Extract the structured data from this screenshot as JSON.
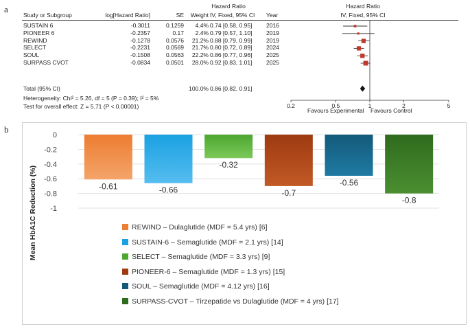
{
  "panel_labels": {
    "a": "a",
    "b": "b"
  },
  "forest": {
    "col_headers": {
      "study": "Study or Subgroup",
      "loghr": "log[Hazard Ratio]",
      "se": "SE",
      "weight": "Weight",
      "hr_top": "Hazard Ratio",
      "hr_sub": "IV, Fixed, 95% CI",
      "year": "Year",
      "plot_top": "Hazard Ratio",
      "plot_sub": "IV, Fixed, 95% CI"
    },
    "rows": [
      {
        "study": "SUSTAIN 6",
        "loghr": "-0.3011",
        "se": "0.1259",
        "weight": "4.4%",
        "hr": "0.74 [0.58, 0.95]",
        "year": "2016"
      },
      {
        "study": "PIONEER 6",
        "loghr": "-0.2357",
        "se": "0.17",
        "weight": "2.4%",
        "hr": "0.79 [0.57, 1.10]",
        "year": "2019"
      },
      {
        "study": "REWIND",
        "loghr": "-0.1278",
        "se": "0.0576",
        "weight": "21.2%",
        "hr": "0.88 [0.79, 0.99]",
        "year": "2019"
      },
      {
        "study": "SELECT",
        "loghr": "-0.2231",
        "se": "0.0569",
        "weight": "21.7%",
        "hr": "0.80 [0.72, 0.89]",
        "year": "2024"
      },
      {
        "study": "SOUL",
        "loghr": "-0.1508",
        "se": "0.0563",
        "weight": "22.2%",
        "hr": "0.86 [0.77, 0.96]",
        "year": "2025"
      },
      {
        "study": "SURPASS CVOT",
        "loghr": "-0.0834",
        "se": "0.0501",
        "weight": "28.0%",
        "hr": "0.92 [0.83, 1.01]",
        "year": "2025"
      }
    ],
    "total": {
      "label": "Total (95% CI)",
      "weight": "100.0%",
      "hr": "0.86 [0.82, 0.91]"
    },
    "heterogeneity": "Heterogeneity: Chi² = 5.26, df = 5 (P = 0.39); I² = 5%",
    "overall_effect": "Test for overall effect: Z = 5.71 (P < 0.00001)",
    "axis_ticks": [
      "0.2",
      "0.5",
      "1",
      "2",
      "5"
    ],
    "favours_left": "Favours Experimental",
    "favours_right": "Favours Control"
  },
  "chart_data": [
    {
      "type": "forest",
      "x_scale": "log",
      "xlim": [
        0.2,
        5
      ],
      "x_ticks": [
        0.2,
        0.5,
        1,
        2,
        5
      ],
      "studies": [
        {
          "name": "SUSTAIN 6",
          "hr": 0.74,
          "lo": 0.58,
          "hi": 0.95,
          "weight": 4.4
        },
        {
          "name": "PIONEER 6",
          "hr": 0.79,
          "lo": 0.57,
          "hi": 1.1,
          "weight": 2.4
        },
        {
          "name": "REWIND",
          "hr": 0.88,
          "lo": 0.79,
          "hi": 0.99,
          "weight": 21.2
        },
        {
          "name": "SELECT",
          "hr": 0.8,
          "lo": 0.72,
          "hi": 0.89,
          "weight": 21.7
        },
        {
          "name": "SOUL",
          "hr": 0.86,
          "lo": 0.77,
          "hi": 0.96,
          "weight": 22.2
        },
        {
          "name": "SURPASS CVOT",
          "hr": 0.92,
          "lo": 0.83,
          "hi": 1.01,
          "weight": 28.0
        }
      ],
      "pooled": {
        "hr": 0.86,
        "lo": 0.82,
        "hi": 0.91
      },
      "colors": {
        "square": "#c0392b",
        "line": "#333333",
        "diamond": "#111111"
      }
    },
    {
      "type": "bar",
      "ylabel": "Mean HbA1C Reduction (%)",
      "ylim": [
        -1,
        0
      ],
      "y_ticks": [
        0,
        -0.2,
        -0.4,
        -0.6,
        -0.8,
        -1
      ],
      "y_tick_labels": [
        "0",
        "-0.2",
        "-0.4",
        "-0.6",
        "-0.8",
        "-1"
      ],
      "grid": true,
      "legend_position": "bottom",
      "series": [
        {
          "name": "REWIND – Dulaglutide (MDF = 5.4 yrs) [6]",
          "value": -0.61,
          "label": "-0.61",
          "color": "#ed7d31",
          "color2": "#f4a46a"
        },
        {
          "name": "SUSTAIN-6 – Semaglutide (MDF = 2.1 yrs) [14]",
          "value": -0.66,
          "label": "-0.66",
          "color": "#1ba1e2",
          "color2": "#55bdf0"
        },
        {
          "name": "SELECT – Semaglutide (MDF = 3.3 yrs) [9]",
          "value": -0.32,
          "label": "-0.32",
          "color": "#4ca62f",
          "color2": "#7cc95a"
        },
        {
          "name": "PIONEER-6 – Semaglutide (MDF = 1.3 yrs) [15]",
          "value": -0.7,
          "label": "-0.7",
          "color": "#9e3a10",
          "color2": "#c25a26"
        },
        {
          "name": "SOUL – Semaglutide (MDF = 4.12 yrs) [16]",
          "value": -0.56,
          "label": "-0.56",
          "color": "#135a7a",
          "color2": "#1f7aa3"
        },
        {
          "name": "SURPASS-CVOT – Tirzepatide vs Dulaglutide (MDF = 4 yrs) [17]",
          "value": -0.8,
          "label": "-0.8",
          "color": "#2f6b1e",
          "color2": "#4a8f30"
        }
      ]
    }
  ]
}
